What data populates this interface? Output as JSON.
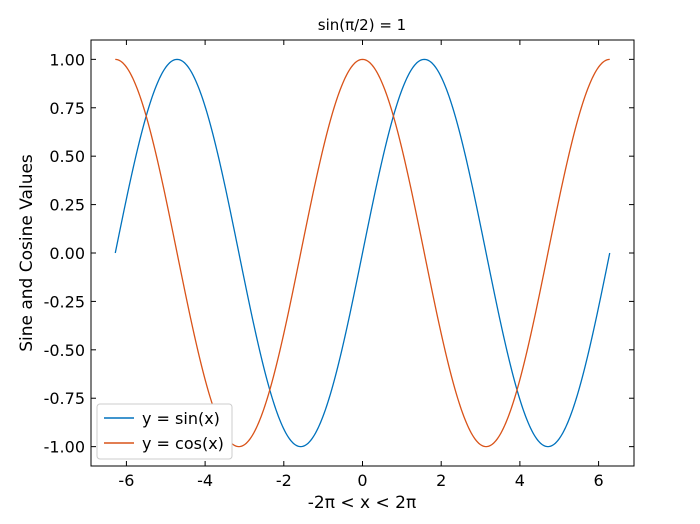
{
  "chart_data": {
    "type": "line",
    "title": "sin(π/2) = 1",
    "xlabel": "-2π < x < 2π",
    "ylabel": "Sine and Cosine Values",
    "xlim": [
      -6.9,
      6.9
    ],
    "ylim": [
      -1.1,
      1.1
    ],
    "x_domain": [
      -6.283185307,
      6.283185307
    ],
    "x_ticks": [
      -6,
      -4,
      -2,
      0,
      2,
      4,
      6
    ],
    "x_tick_labels": [
      "-6",
      "-4",
      "-2",
      "0",
      "2",
      "4",
      "6"
    ],
    "y_ticks": [
      1.0,
      0.75,
      0.5,
      0.25,
      0.0,
      -0.25,
      -0.5,
      -0.75,
      -1.0
    ],
    "y_tick_labels": [
      "1.00",
      "0.75",
      "0.50",
      "0.25",
      "0.00",
      "-0.25",
      "-0.50",
      "-0.75",
      "-1.00"
    ],
    "grid": false,
    "legend_position": "lower-left",
    "series": [
      {
        "name": "y = sin(x)",
        "function": "sin",
        "color": "#0072bd"
      },
      {
        "name": "y = cos(x)",
        "function": "cos",
        "color": "#d95319"
      }
    ]
  }
}
